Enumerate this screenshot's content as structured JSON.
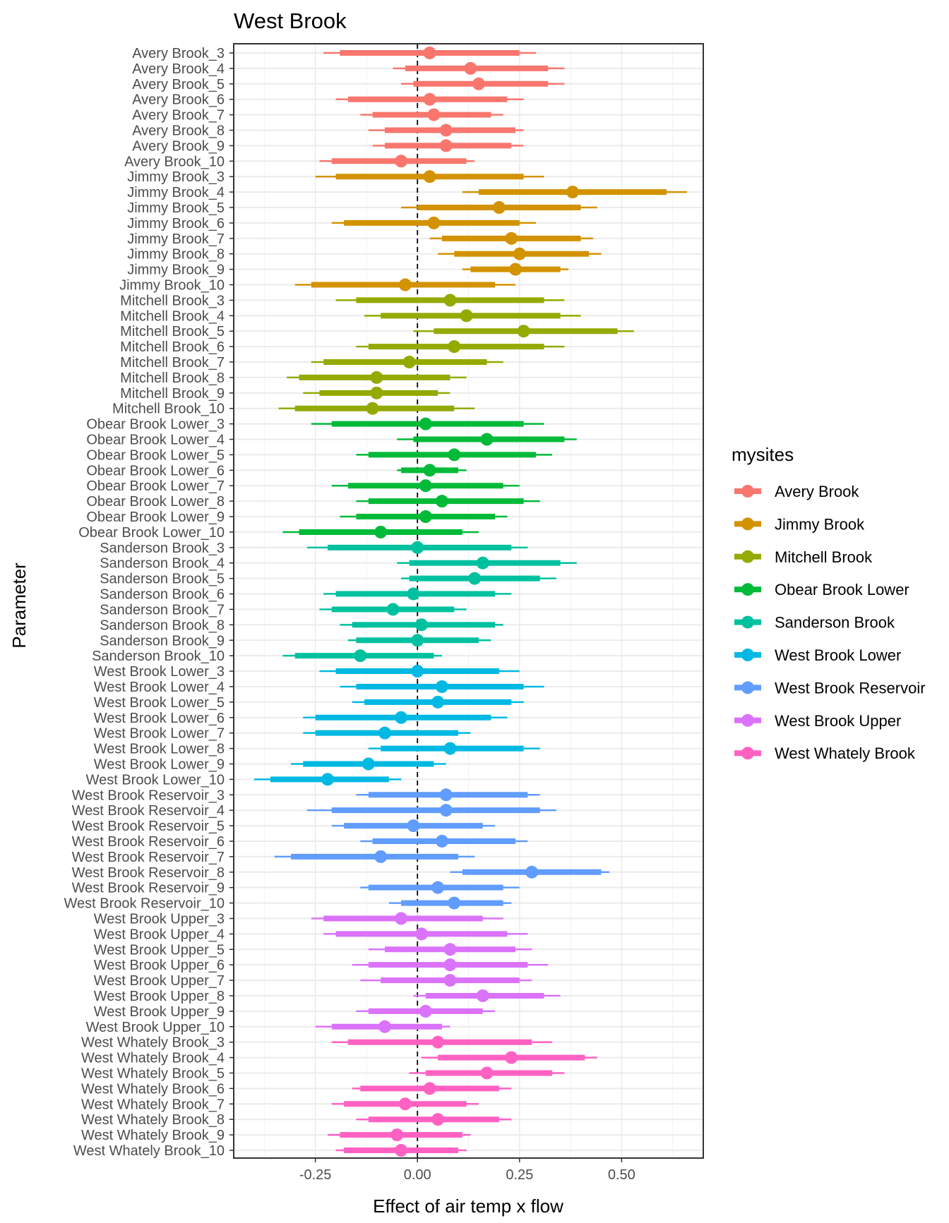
{
  "chart_data": {
    "type": "interval",
    "title": "West Brook",
    "xlabel": "Effect of air temp x flow",
    "ylabel": "Parameter",
    "xlim": [
      -0.45,
      0.7
    ],
    "xticks": [
      -0.25,
      0.0,
      0.25,
      0.5
    ],
    "xtick_labels": [
      "-0.25",
      "0.00",
      "0.25",
      "0.50"
    ],
    "reference_line": 0,
    "grid": true,
    "legend": {
      "title": "mysites",
      "placement": "right",
      "entries": [
        {
          "name": "Avery Brook",
          "color": "#F8766D"
        },
        {
          "name": "Jimmy Brook",
          "color": "#D39200"
        },
        {
          "name": "Mitchell Brook",
          "color": "#93AA00"
        },
        {
          "name": "Obear Brook Lower",
          "color": "#00BA38"
        },
        {
          "name": "Sanderson Brook",
          "color": "#00C19F"
        },
        {
          "name": "West Brook Lower",
          "color": "#00B9E3"
        },
        {
          "name": "West Brook Reservoir",
          "color": "#619CFF"
        },
        {
          "name": "West Brook Upper",
          "color": "#DB72FB"
        },
        {
          "name": "West Whately Brook",
          "color": "#FF61C3"
        }
      ]
    },
    "columns": [
      "label",
      "site_index",
      "outer_lo",
      "inner_lo",
      "estimate",
      "inner_hi",
      "outer_hi"
    ],
    "rows": [
      [
        "Avery Brook_3",
        0,
        -0.23,
        -0.19,
        0.03,
        0.25,
        0.29
      ],
      [
        "Avery Brook_4",
        0,
        -0.06,
        -0.03,
        0.13,
        0.32,
        0.36
      ],
      [
        "Avery Brook_5",
        0,
        -0.04,
        -0.01,
        0.15,
        0.32,
        0.36
      ],
      [
        "Avery Brook_6",
        0,
        -0.2,
        -0.17,
        0.03,
        0.22,
        0.26
      ],
      [
        "Avery Brook_7",
        0,
        -0.14,
        -0.11,
        0.04,
        0.18,
        0.21
      ],
      [
        "Avery Brook_8",
        0,
        -0.12,
        -0.08,
        0.07,
        0.24,
        0.26
      ],
      [
        "Avery Brook_9",
        0,
        -0.11,
        -0.08,
        0.07,
        0.23,
        0.26
      ],
      [
        "Avery Brook_10",
        0,
        -0.24,
        -0.21,
        -0.04,
        0.12,
        0.14
      ],
      [
        "Jimmy Brook_3",
        1,
        -0.25,
        -0.2,
        0.03,
        0.26,
        0.31
      ],
      [
        "Jimmy Brook_4",
        1,
        0.11,
        0.15,
        0.38,
        0.61,
        0.66
      ],
      [
        "Jimmy Brook_5",
        1,
        -0.04,
        0.0,
        0.2,
        0.4,
        0.44
      ],
      [
        "Jimmy Brook_6",
        1,
        -0.21,
        -0.18,
        0.04,
        0.25,
        0.29
      ],
      [
        "Jimmy Brook_7",
        1,
        0.03,
        0.06,
        0.23,
        0.4,
        0.43
      ],
      [
        "Jimmy Brook_8",
        1,
        0.05,
        0.09,
        0.25,
        0.42,
        0.45
      ],
      [
        "Jimmy Brook_9",
        1,
        0.11,
        0.13,
        0.24,
        0.35,
        0.37
      ],
      [
        "Jimmy Brook_10",
        1,
        -0.3,
        -0.26,
        -0.03,
        0.19,
        0.24
      ],
      [
        "Mitchell Brook_3",
        2,
        -0.2,
        -0.15,
        0.08,
        0.31,
        0.36
      ],
      [
        "Mitchell Brook_4",
        2,
        -0.13,
        -0.09,
        0.12,
        0.35,
        0.4
      ],
      [
        "Mitchell Brook_5",
        2,
        -0.01,
        0.04,
        0.26,
        0.49,
        0.53
      ],
      [
        "Mitchell Brook_6",
        2,
        -0.15,
        -0.12,
        0.09,
        0.31,
        0.36
      ],
      [
        "Mitchell Brook_7",
        2,
        -0.26,
        -0.23,
        -0.02,
        0.17,
        0.21
      ],
      [
        "Mitchell Brook_8",
        2,
        -0.32,
        -0.29,
        -0.1,
        0.08,
        0.12
      ],
      [
        "Mitchell Brook_9",
        2,
        -0.28,
        -0.24,
        -0.1,
        0.05,
        0.08
      ],
      [
        "Mitchell Brook_10",
        2,
        -0.34,
        -0.3,
        -0.11,
        0.09,
        0.14
      ],
      [
        "Obear Brook Lower_3",
        3,
        -0.26,
        -0.21,
        0.02,
        0.26,
        0.31
      ],
      [
        "Obear Brook Lower_4",
        3,
        -0.05,
        -0.01,
        0.17,
        0.36,
        0.39
      ],
      [
        "Obear Brook Lower_5",
        3,
        -0.15,
        -0.12,
        0.09,
        0.29,
        0.33
      ],
      [
        "Obear Brook Lower_6",
        3,
        -0.05,
        -0.04,
        0.03,
        0.1,
        0.12
      ],
      [
        "Obear Brook Lower_7",
        3,
        -0.21,
        -0.17,
        0.02,
        0.21,
        0.25
      ],
      [
        "Obear Brook Lower_8",
        3,
        -0.15,
        -0.12,
        0.06,
        0.26,
        0.3
      ],
      [
        "Obear Brook Lower_9",
        3,
        -0.19,
        -0.15,
        0.02,
        0.19,
        0.22
      ],
      [
        "Obear Brook Lower_10",
        3,
        -0.33,
        -0.29,
        -0.09,
        0.11,
        0.15
      ],
      [
        "Sanderson Brook_3",
        4,
        -0.27,
        -0.22,
        0.0,
        0.23,
        0.27
      ],
      [
        "Sanderson Brook_4",
        4,
        -0.05,
        -0.02,
        0.16,
        0.35,
        0.39
      ],
      [
        "Sanderson Brook_5",
        4,
        -0.04,
        -0.02,
        0.14,
        0.3,
        0.34
      ],
      [
        "Sanderson Brook_6",
        4,
        -0.23,
        -0.2,
        -0.01,
        0.19,
        0.23
      ],
      [
        "Sanderson Brook_7",
        4,
        -0.24,
        -0.21,
        -0.06,
        0.09,
        0.12
      ],
      [
        "Sanderson Brook_8",
        4,
        -0.19,
        -0.16,
        0.01,
        0.19,
        0.21
      ],
      [
        "Sanderson Brook_9",
        4,
        -0.17,
        -0.15,
        0.0,
        0.15,
        0.18
      ],
      [
        "Sanderson Brook_10",
        4,
        -0.33,
        -0.3,
        -0.14,
        0.04,
        0.06
      ],
      [
        "West Brook Lower_3",
        5,
        -0.24,
        -0.2,
        0.0,
        0.2,
        0.25
      ],
      [
        "West Brook Lower_4",
        5,
        -0.19,
        -0.15,
        0.06,
        0.26,
        0.31
      ],
      [
        "West Brook Lower_5",
        5,
        -0.16,
        -0.13,
        0.05,
        0.23,
        0.26
      ],
      [
        "West Brook Lower_6",
        5,
        -0.28,
        -0.25,
        -0.04,
        0.18,
        0.22
      ],
      [
        "West Brook Lower_7",
        5,
        -0.28,
        -0.25,
        -0.08,
        0.1,
        0.13
      ],
      [
        "West Brook Lower_8",
        5,
        -0.12,
        -0.09,
        0.08,
        0.26,
        0.3
      ],
      [
        "West Brook Lower_9",
        5,
        -0.31,
        -0.28,
        -0.12,
        0.04,
        0.07
      ],
      [
        "West Brook Lower_10",
        5,
        -0.4,
        -0.36,
        -0.22,
        -0.07,
        -0.04
      ],
      [
        "West Brook Reservoir_3",
        6,
        -0.15,
        -0.12,
        0.07,
        0.27,
        0.3
      ],
      [
        "West Brook Reservoir_4",
        6,
        -0.27,
        -0.21,
        0.07,
        0.3,
        0.34
      ],
      [
        "West Brook Reservoir_5",
        6,
        -0.21,
        -0.18,
        -0.01,
        0.16,
        0.19
      ],
      [
        "West Brook Reservoir_6",
        6,
        -0.14,
        -0.11,
        0.06,
        0.24,
        0.27
      ],
      [
        "West Brook Reservoir_7",
        6,
        -0.35,
        -0.31,
        -0.09,
        0.1,
        0.14
      ],
      [
        "West Brook Reservoir_8",
        6,
        0.08,
        0.11,
        0.28,
        0.45,
        0.47
      ],
      [
        "West Brook Reservoir_9",
        6,
        -0.14,
        -0.12,
        0.05,
        0.21,
        0.25
      ],
      [
        "West Brook Reservoir_10",
        6,
        -0.07,
        -0.04,
        0.09,
        0.21,
        0.23
      ],
      [
        "West Brook Upper_3",
        7,
        -0.26,
        -0.23,
        -0.04,
        0.16,
        0.21
      ],
      [
        "West Brook Upper_4",
        7,
        -0.23,
        -0.2,
        0.01,
        0.22,
        0.27
      ],
      [
        "West Brook Upper_5",
        7,
        -0.12,
        -0.08,
        0.08,
        0.24,
        0.28
      ],
      [
        "West Brook Upper_6",
        7,
        -0.16,
        -0.12,
        0.08,
        0.27,
        0.32
      ],
      [
        "West Brook Upper_7",
        7,
        -0.14,
        -0.09,
        0.08,
        0.25,
        0.28
      ],
      [
        "West Brook Upper_8",
        7,
        -0.01,
        0.02,
        0.16,
        0.31,
        0.35
      ],
      [
        "West Brook Upper_9",
        7,
        -0.15,
        -0.12,
        0.02,
        0.16,
        0.19
      ],
      [
        "West Brook Upper_10",
        7,
        -0.25,
        -0.21,
        -0.08,
        0.06,
        0.08
      ],
      [
        "West Whately Brook_3",
        8,
        -0.21,
        -0.17,
        0.05,
        0.28,
        0.33
      ],
      [
        "West Whately Brook_4",
        8,
        0.01,
        0.05,
        0.23,
        0.41,
        0.44
      ],
      [
        "West Whately Brook_5",
        8,
        -0.02,
        0.02,
        0.17,
        0.33,
        0.36
      ],
      [
        "West Whately Brook_6",
        8,
        -0.16,
        -0.14,
        0.03,
        0.2,
        0.23
      ],
      [
        "West Whately Brook_7",
        8,
        -0.21,
        -0.18,
        -0.03,
        0.12,
        0.15
      ],
      [
        "West Whately Brook_8",
        8,
        -0.15,
        -0.12,
        0.05,
        0.2,
        0.23
      ],
      [
        "West Whately Brook_9",
        8,
        -0.22,
        -0.19,
        -0.05,
        0.11,
        0.13
      ],
      [
        "West Whately Brook_10",
        8,
        -0.2,
        -0.18,
        -0.04,
        0.1,
        0.12
      ]
    ]
  }
}
